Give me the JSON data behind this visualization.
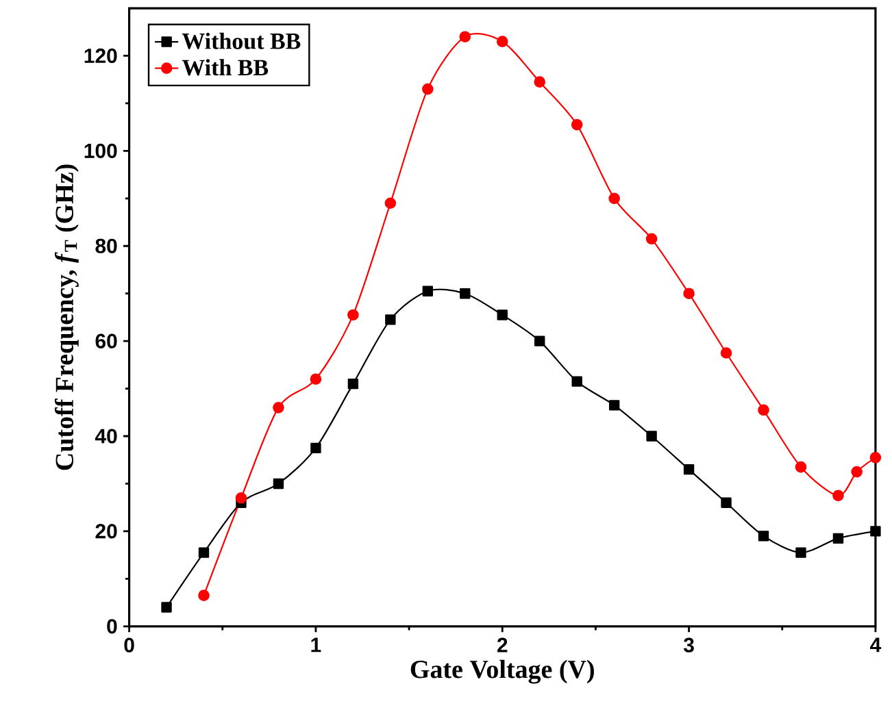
{
  "chart_data": {
    "type": "line",
    "xlabel": "Gate Voltage (V)",
    "ylabel": "Cutoff  Frequency, *f*$_{T}$ (GHz)",
    "xlim": [
      0,
      4
    ],
    "ylim": [
      0,
      130
    ],
    "xticks": [
      0,
      1,
      2,
      3,
      4
    ],
    "yticks": [
      0,
      20,
      40,
      60,
      80,
      100,
      120
    ],
    "legend": "top left",
    "grid": false,
    "line_style": "solid",
    "series": [
      {
        "name": "Without BB",
        "color": "#000000",
        "marker": "square",
        "x": [
          0.2,
          0.4,
          0.6,
          0.8,
          1.0,
          1.2,
          1.4,
          1.6,
          1.8,
          2.0,
          2.2,
          2.4,
          2.6,
          2.8,
          3.0,
          3.2,
          3.4,
          3.6,
          3.8,
          4.0
        ],
        "values": [
          4,
          15.5,
          26,
          30,
          37.5,
          51,
          64.5,
          70.5,
          70,
          65.5,
          60,
          51.5,
          46.5,
          40,
          33,
          26,
          19,
          15.5,
          18.5,
          20
        ]
      },
      {
        "name": "With BB",
        "color": "#ff0000",
        "marker": "circle",
        "x": [
          0.4,
          0.6,
          0.8,
          1.0,
          1.2,
          1.4,
          1.6,
          1.8,
          2.0,
          2.2,
          2.4,
          2.6,
          2.8,
          3.0,
          3.2,
          3.4,
          3.6,
          3.8,
          3.9,
          4.0
        ],
        "values": [
          6.5,
          27,
          46,
          52,
          65.5,
          89,
          113,
          124,
          123,
          114.5,
          105.5,
          90,
          81.5,
          70,
          57.5,
          45.5,
          33.5,
          27.5,
          32.5,
          35.5
        ]
      }
    ]
  }
}
